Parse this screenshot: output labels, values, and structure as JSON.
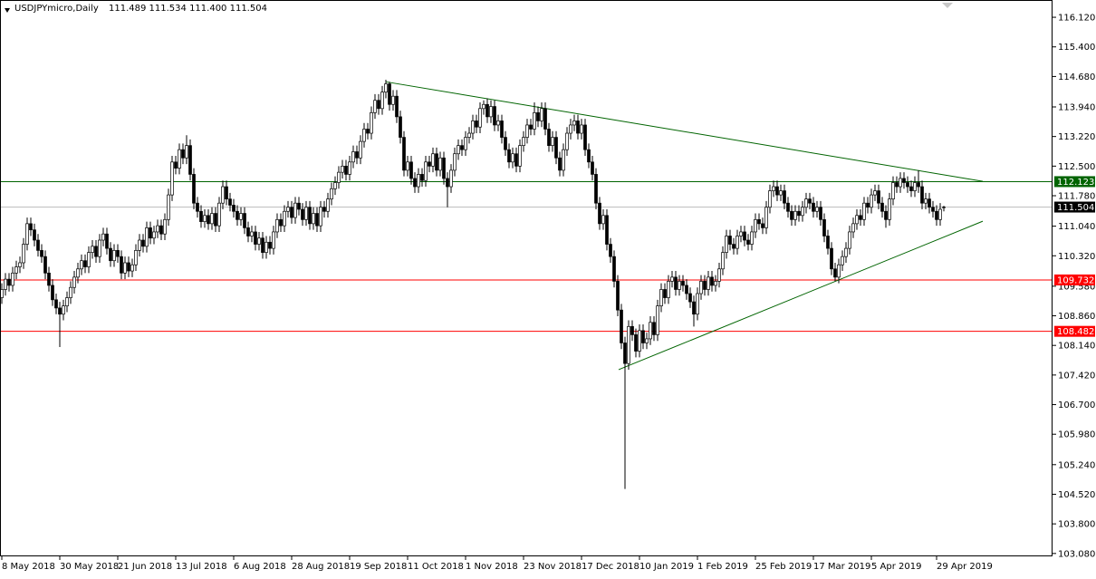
{
  "chart_data": {
    "type": "candlestick",
    "title": "USDJPYmicro,Daily",
    "quote": "111.489 111.534 111.400 111.504",
    "up_color": "#ffffff",
    "down_color": "#000000",
    "ylim": [
      103.01,
      116.54
    ],
    "yticks": [
      {
        "value": 116.12,
        "label": "116.120"
      },
      {
        "value": 115.4,
        "label": "115.400"
      },
      {
        "value": 114.68,
        "label": "114.680"
      },
      {
        "value": 113.94,
        "label": "113.940"
      },
      {
        "value": 113.22,
        "label": "113.220"
      },
      {
        "value": 112.5,
        "label": "112.500"
      },
      {
        "value": 111.78,
        "label": "111.780"
      },
      {
        "value": 111.04,
        "label": "111.040"
      },
      {
        "value": 110.32,
        "label": "110.320"
      },
      {
        "value": 109.58,
        "label": "109.580"
      },
      {
        "value": 108.86,
        "label": "108.860"
      },
      {
        "value": 108.14,
        "label": "108.140"
      },
      {
        "value": 107.42,
        "label": "107.420"
      },
      {
        "value": 106.7,
        "label": "106.700"
      },
      {
        "value": 105.98,
        "label": "105.980"
      },
      {
        "value": 105.24,
        "label": "105.240"
      },
      {
        "value": 104.52,
        "label": "104.520"
      },
      {
        "value": 103.8,
        "label": "103.800"
      },
      {
        "value": 103.08,
        "label": "103.080"
      }
    ],
    "levels": [
      {
        "value": 112.123,
        "color": "#006400"
      },
      {
        "value": 111.504,
        "color": "#000000"
      },
      {
        "value": 109.732,
        "color": "#ff0000"
      },
      {
        "value": 108.482,
        "color": "#ff0000"
      }
    ],
    "trendlines": [
      {
        "x": [
          106,
          270.75
        ],
        "y": [
          114.55,
          112.13
        ],
        "color": "#006400"
      },
      {
        "x": [
          170.25,
          270.75
        ],
        "y": [
          107.55,
          111.16
        ],
        "color": "#006400"
      }
    ],
    "categories": [
      "8 May 2018",
      null,
      null,
      null,
      null,
      null,
      null,
      null,
      null,
      null,
      null,
      null,
      null,
      null,
      null,
      null,
      "30 May 2018",
      null,
      null,
      null,
      null,
      null,
      null,
      null,
      null,
      null,
      null,
      null,
      null,
      null,
      null,
      null,
      "21 Jun 2018",
      null,
      null,
      null,
      null,
      null,
      null,
      null,
      null,
      null,
      null,
      null,
      null,
      null,
      null,
      null,
      "13 Jul 2018",
      null,
      null,
      null,
      null,
      null,
      null,
      null,
      null,
      null,
      null,
      null,
      null,
      null,
      null,
      null,
      "6 Aug 2018",
      null,
      null,
      null,
      null,
      null,
      null,
      null,
      null,
      null,
      null,
      null,
      null,
      null,
      null,
      null,
      "28 Aug 2018",
      null,
      null,
      null,
      null,
      null,
      null,
      null,
      null,
      null,
      null,
      null,
      null,
      null,
      null,
      null,
      "19 Sep 2018",
      null,
      null,
      null,
      null,
      null,
      null,
      null,
      null,
      null,
      null,
      null,
      null,
      null,
      null,
      null,
      "11 Oct 2018",
      null,
      null,
      null,
      null,
      null,
      null,
      null,
      null,
      null,
      null,
      null,
      null,
      null,
      null,
      null,
      "1 Nov 2018",
      null,
      null,
      null,
      null,
      null,
      null,
      null,
      null,
      null,
      null,
      null,
      null,
      null,
      null,
      null,
      "23 Nov 2018",
      null,
      null,
      null,
      null,
      null,
      null,
      null,
      null,
      null,
      null,
      null,
      null,
      null,
      null,
      null,
      "17 Dec 2018",
      null,
      null,
      null,
      null,
      null,
      null,
      null,
      null,
      null,
      null,
      null,
      null,
      null,
      null,
      null,
      "10 Jan 2019",
      null,
      null,
      null,
      null,
      null,
      null,
      null,
      null,
      null,
      null,
      null,
      null,
      null,
      null,
      null,
      "1 Feb 2019",
      null,
      null,
      null,
      null,
      null,
      null,
      null,
      null,
      null,
      null,
      null,
      null,
      null,
      null,
      null,
      "25 Feb 2019",
      null,
      null,
      null,
      null,
      null,
      null,
      null,
      null,
      null,
      null,
      null,
      null,
      null,
      null,
      null,
      "17 Mar 2019",
      null,
      null,
      null,
      null,
      null,
      null,
      null,
      null,
      null,
      null,
      null,
      null,
      null,
      null,
      null,
      "5 Apr 2019",
      null,
      null,
      null,
      null,
      null,
      null,
      null,
      null,
      null,
      null,
      null,
      null,
      null,
      null,
      null,
      null,
      null,
      "29 Apr 2019",
      null,
      null
    ],
    "open": [
      109.3,
      109.5,
      109.75,
      109.6,
      109.9,
      110.05,
      110.15,
      110.6,
      111.1,
      110.95,
      110.7,
      110.45,
      110.3,
      109.9,
      109.6,
      109.25,
      109.05,
      108.9,
      109.1,
      109.3,
      109.55,
      109.8,
      110.0,
      110.2,
      110.05,
      110.4,
      110.55,
      110.3,
      110.7,
      110.85,
      110.5,
      110.2,
      110.45,
      110.3,
      109.9,
      110.15,
      109.95,
      110.1,
      110.45,
      110.7,
      110.55,
      111.0,
      110.75,
      110.9,
      111.05,
      110.85,
      111.2,
      111.8,
      112.6,
      112.45,
      112.9,
      112.7,
      113.0,
      112.3,
      111.6,
      111.4,
      111.15,
      111.3,
      111.1,
      111.35,
      111.05,
      111.6,
      112.0,
      111.7,
      111.55,
      111.4,
      111.2,
      111.35,
      111.0,
      110.8,
      110.9,
      110.6,
      110.75,
      110.4,
      110.65,
      110.5,
      110.9,
      111.2,
      111.05,
      111.4,
      111.5,
      111.25,
      111.6,
      111.45,
      111.2,
      111.5,
      111.1,
      111.35,
      111.05,
      111.5,
      111.4,
      111.7,
      111.95,
      112.1,
      112.35,
      112.5,
      112.3,
      112.6,
      112.85,
      112.7,
      113.1,
      113.4,
      113.3,
      113.8,
      114.1,
      113.9,
      114.3,
      114.5,
      114.0,
      114.2,
      113.7,
      113.2,
      112.4,
      112.6,
      112.2,
      112.0,
      112.3,
      112.15,
      112.6,
      112.5,
      112.8,
      112.4,
      112.7,
      112.2,
      112.0,
      112.4,
      112.8,
      113.0,
      112.9,
      113.2,
      113.3,
      113.6,
      113.45,
      113.9,
      114.0,
      113.7,
      113.95,
      113.5,
      113.6,
      113.2,
      112.9,
      112.6,
      112.8,
      112.5,
      113.0,
      113.2,
      113.5,
      113.4,
      113.8,
      113.6,
      113.9,
      113.4,
      113.0,
      113.2,
      112.7,
      112.4,
      112.9,
      113.3,
      113.5,
      113.6,
      113.3,
      113.5,
      112.9,
      112.6,
      112.3,
      111.6,
      111.1,
      111.3,
      110.6,
      110.3,
      109.7,
      109.0,
      108.2,
      107.7,
      108.6,
      108.4,
      108.0,
      108.5,
      108.2,
      108.3,
      108.7,
      108.4,
      109.1,
      109.5,
      109.3,
      109.7,
      109.8,
      109.5,
      109.7,
      109.6,
      109.4,
      109.2,
      108.9,
      109.4,
      109.7,
      109.5,
      109.8,
      109.6,
      109.7,
      110.0,
      110.4,
      110.8,
      110.6,
      110.5,
      110.8,
      110.9,
      110.7,
      110.6,
      110.9,
      111.2,
      111.1,
      111.0,
      111.5,
      111.9,
      112.0,
      111.8,
      111.9,
      111.6,
      111.4,
      111.2,
      111.4,
      111.3,
      111.5,
      111.7,
      111.6,
      111.4,
      111.5,
      111.2,
      110.8,
      110.5,
      110.0,
      109.8,
      110.1,
      110.3,
      110.5,
      110.9,
      111.1,
      111.3,
      111.2,
      111.6,
      111.5,
      111.8,
      111.9,
      111.6,
      111.4,
      111.2,
      111.7,
      112.1,
      112.0,
      112.2,
      112.1,
      112.0,
      111.9,
      112.1,
      112.0,
      111.6,
      111.7,
      111.5,
      111.4,
      111.2,
      111.489
    ],
    "high": [
      109.65,
      109.9,
      109.9,
      110.05,
      110.2,
      110.3,
      110.75,
      111.25,
      111.25,
      111.1,
      110.85,
      110.6,
      110.45,
      110.05,
      109.75,
      109.4,
      109.2,
      109.25,
      109.45,
      109.7,
      109.95,
      110.15,
      110.35,
      110.35,
      110.55,
      110.7,
      110.7,
      110.85,
      111.0,
      111.0,
      110.65,
      110.6,
      110.6,
      110.45,
      110.3,
      110.3,
      110.25,
      110.6,
      110.85,
      110.85,
      111.15,
      111.15,
      111.05,
      111.2,
      111.2,
      111.35,
      111.95,
      112.75,
      112.75,
      113.05,
      113.05,
      113.25,
      113.15,
      112.45,
      111.75,
      111.55,
      111.45,
      111.45,
      111.5,
      111.5,
      111.75,
      112.15,
      112.15,
      111.85,
      111.7,
      111.55,
      111.5,
      111.5,
      111.15,
      111.05,
      111.05,
      110.9,
      110.9,
      110.8,
      110.8,
      111.05,
      111.35,
      111.35,
      111.55,
      111.65,
      111.65,
      111.75,
      111.75,
      111.6,
      111.65,
      111.65,
      111.5,
      111.5,
      111.65,
      111.65,
      111.85,
      112.1,
      112.25,
      112.5,
      112.65,
      112.65,
      112.75,
      113.0,
      113.0,
      113.25,
      113.55,
      113.55,
      113.95,
      114.25,
      114.25,
      114.45,
      114.6,
      114.55,
      114.35,
      114.35,
      113.85,
      113.35,
      112.75,
      112.75,
      112.35,
      112.45,
      112.45,
      112.75,
      112.75,
      112.95,
      112.95,
      112.85,
      112.85,
      112.35,
      112.55,
      112.95,
      113.15,
      113.15,
      113.35,
      113.45,
      113.75,
      113.75,
      114.05,
      114.1,
      114.15,
      114.1,
      114.1,
      113.75,
      113.75,
      113.35,
      113.05,
      112.95,
      112.95,
      113.15,
      113.35,
      113.65,
      113.65,
      114.05,
      113.95,
      114.05,
      114.05,
      113.55,
      113.35,
      113.35,
      112.85,
      113.05,
      113.45,
      113.65,
      113.75,
      113.75,
      113.65,
      113.65,
      113.05,
      112.75,
      112.45,
      111.75,
      111.45,
      111.45,
      110.75,
      110.45,
      109.85,
      109.15,
      108.35,
      108.75,
      108.75,
      108.55,
      108.65,
      108.65,
      108.45,
      108.85,
      108.85,
      109.25,
      109.65,
      109.65,
      109.85,
      109.95,
      109.95,
      109.85,
      109.85,
      109.75,
      109.55,
      109.35,
      109.55,
      109.85,
      109.85,
      109.95,
      109.95,
      109.85,
      110.15,
      110.55,
      110.95,
      110.95,
      110.75,
      110.95,
      111.05,
      111.05,
      110.85,
      111.05,
      111.35,
      111.35,
      111.25,
      111.65,
      112.05,
      112.15,
      112.15,
      112.05,
      112.05,
      111.75,
      111.55,
      111.55,
      111.55,
      111.65,
      111.85,
      111.85,
      111.75,
      111.65,
      111.65,
      111.35,
      110.95,
      110.65,
      110.15,
      110.25,
      110.45,
      110.65,
      111.05,
      111.25,
      111.45,
      111.45,
      111.75,
      111.75,
      111.95,
      112.05,
      112.05,
      111.75,
      111.55,
      111.85,
      112.25,
      112.25,
      112.35,
      112.35,
      112.25,
      112.15,
      112.25,
      112.4,
      112.15,
      111.85,
      111.85,
      111.65,
      111.55,
      111.6,
      111.534
    ],
    "low": [
      109.15,
      109.35,
      109.45,
      109.45,
      109.75,
      109.9,
      110.0,
      110.45,
      110.8,
      110.55,
      110.3,
      110.15,
      109.75,
      109.45,
      109.1,
      108.9,
      108.1,
      108.75,
      108.95,
      109.15,
      109.4,
      109.65,
      109.85,
      109.9,
      109.9,
      110.25,
      110.15,
      110.15,
      110.55,
      110.35,
      110.05,
      110.05,
      110.15,
      109.75,
      109.75,
      109.8,
      109.8,
      109.95,
      110.3,
      110.4,
      110.4,
      110.6,
      110.6,
      110.75,
      110.7,
      110.7,
      111.05,
      111.65,
      112.3,
      112.3,
      112.55,
      112.55,
      112.15,
      111.45,
      111.25,
      111.0,
      111.0,
      110.95,
      110.95,
      110.9,
      110.9,
      111.45,
      111.55,
      111.4,
      111.25,
      111.05,
      111.05,
      110.85,
      110.65,
      110.65,
      110.45,
      110.45,
      110.25,
      110.25,
      110.35,
      110.35,
      110.75,
      110.9,
      110.9,
      111.25,
      111.1,
      111.1,
      111.3,
      111.05,
      111.05,
      110.95,
      110.95,
      110.9,
      110.9,
      111.25,
      111.25,
      111.55,
      111.8,
      111.95,
      112.2,
      112.15,
      112.15,
      112.45,
      112.55,
      112.55,
      112.95,
      113.15,
      113.15,
      113.65,
      113.75,
      113.75,
      114.15,
      113.85,
      113.85,
      113.55,
      113.05,
      112.25,
      112.25,
      112.05,
      111.85,
      111.85,
      112.0,
      112.0,
      112.35,
      112.35,
      112.25,
      112.25,
      112.05,
      111.5,
      111.85,
      112.25,
      112.65,
      112.75,
      112.75,
      113.05,
      113.15,
      113.3,
      113.3,
      113.75,
      113.55,
      113.55,
      113.35,
      113.35,
      113.05,
      112.75,
      112.45,
      112.45,
      112.35,
      112.35,
      112.85,
      113.05,
      113.25,
      113.25,
      113.45,
      113.45,
      113.25,
      112.85,
      112.85,
      112.55,
      112.25,
      112.25,
      112.75,
      113.15,
      113.35,
      113.15,
      113.15,
      112.75,
      112.45,
      112.15,
      111.45,
      110.95,
      110.95,
      110.45,
      110.15,
      109.55,
      108.85,
      108.05,
      104.65,
      107.55,
      108.25,
      107.85,
      107.85,
      108.05,
      108.05,
      108.15,
      108.25,
      108.25,
      108.95,
      109.15,
      109.15,
      109.55,
      109.35,
      109.35,
      109.45,
      109.25,
      109.05,
      108.6,
      108.75,
      109.25,
      109.35,
      109.35,
      109.45,
      109.45,
      109.55,
      109.85,
      110.25,
      110.45,
      110.35,
      110.35,
      110.65,
      110.55,
      110.45,
      110.45,
      110.75,
      110.95,
      110.85,
      110.85,
      111.35,
      111.75,
      111.65,
      111.65,
      111.45,
      111.25,
      111.05,
      111.05,
      111.15,
      111.15,
      111.35,
      111.45,
      111.25,
      111.25,
      111.05,
      110.65,
      110.35,
      109.85,
      109.7,
      109.65,
      109.95,
      110.15,
      110.35,
      110.75,
      110.95,
      111.05,
      111.05,
      111.35,
      111.35,
      111.65,
      111.45,
      111.25,
      111.0,
      111.05,
      111.55,
      111.85,
      111.85,
      111.95,
      111.85,
      111.75,
      111.75,
      111.85,
      111.45,
      111.45,
      111.35,
      111.25,
      111.05,
      111.05,
      111.4
    ],
    "close": [
      109.5,
      109.75,
      109.6,
      109.9,
      110.05,
      110.15,
      110.6,
      111.1,
      110.95,
      110.7,
      110.45,
      110.3,
      109.9,
      109.6,
      109.25,
      109.05,
      108.9,
      109.1,
      109.3,
      109.55,
      109.8,
      110.0,
      110.2,
      110.05,
      110.4,
      110.55,
      110.3,
      110.7,
      110.85,
      110.5,
      110.2,
      110.45,
      110.3,
      109.9,
      110.15,
      109.95,
      110.1,
      110.45,
      110.7,
      110.55,
      111.0,
      110.75,
      110.9,
      111.05,
      110.85,
      111.2,
      111.8,
      112.6,
      112.45,
      112.9,
      112.7,
      113.0,
      112.3,
      111.6,
      111.4,
      111.15,
      111.3,
      111.1,
      111.35,
      111.05,
      111.6,
      112.0,
      111.7,
      111.55,
      111.4,
      111.2,
      111.35,
      111.0,
      110.8,
      110.9,
      110.6,
      110.75,
      110.4,
      110.65,
      110.5,
      110.9,
      111.2,
      111.05,
      111.4,
      111.5,
      111.25,
      111.6,
      111.45,
      111.2,
      111.5,
      111.1,
      111.35,
      111.05,
      111.5,
      111.4,
      111.7,
      111.95,
      112.1,
      112.35,
      112.5,
      112.3,
      112.6,
      112.85,
      112.7,
      113.1,
      113.4,
      113.3,
      113.8,
      114.1,
      113.9,
      114.3,
      114.5,
      114.0,
      114.2,
      113.7,
      113.2,
      112.4,
      112.6,
      112.2,
      112.0,
      112.3,
      112.15,
      112.6,
      112.5,
      112.8,
      112.4,
      112.7,
      112.2,
      112.0,
      112.4,
      112.8,
      113.0,
      112.9,
      113.2,
      113.3,
      113.6,
      113.45,
      113.9,
      114.0,
      113.7,
      113.95,
      113.5,
      113.6,
      113.2,
      112.9,
      112.6,
      112.8,
      112.5,
      113.0,
      113.2,
      113.5,
      113.4,
      113.8,
      113.6,
      113.9,
      113.4,
      113.0,
      113.2,
      112.7,
      112.4,
      112.9,
      113.3,
      113.5,
      113.6,
      113.3,
      113.5,
      112.9,
      112.6,
      112.3,
      111.6,
      111.1,
      111.3,
      110.6,
      110.3,
      109.7,
      109.0,
      108.2,
      107.7,
      108.6,
      108.4,
      108.0,
      108.5,
      108.2,
      108.3,
      108.7,
      108.4,
      109.1,
      109.5,
      109.3,
      109.7,
      109.8,
      109.5,
      109.7,
      109.6,
      109.4,
      109.2,
      108.9,
      109.4,
      109.7,
      109.5,
      109.8,
      109.6,
      109.7,
      110.0,
      110.4,
      110.8,
      110.6,
      110.5,
      110.8,
      110.9,
      110.7,
      110.6,
      110.9,
      111.2,
      111.1,
      111.0,
      111.5,
      111.9,
      112.0,
      111.8,
      111.9,
      111.6,
      111.4,
      111.2,
      111.4,
      111.3,
      111.5,
      111.7,
      111.6,
      111.4,
      111.5,
      111.2,
      110.8,
      110.5,
      110.0,
      109.8,
      110.1,
      110.3,
      110.5,
      110.9,
      111.1,
      111.3,
      111.2,
      111.6,
      111.5,
      111.8,
      111.9,
      111.6,
      111.4,
      111.2,
      111.7,
      112.1,
      112.0,
      112.2,
      112.1,
      112.0,
      111.9,
      112.1,
      112.0,
      111.6,
      111.7,
      111.5,
      111.4,
      111.2,
      111.45,
      111.504
    ]
  }
}
